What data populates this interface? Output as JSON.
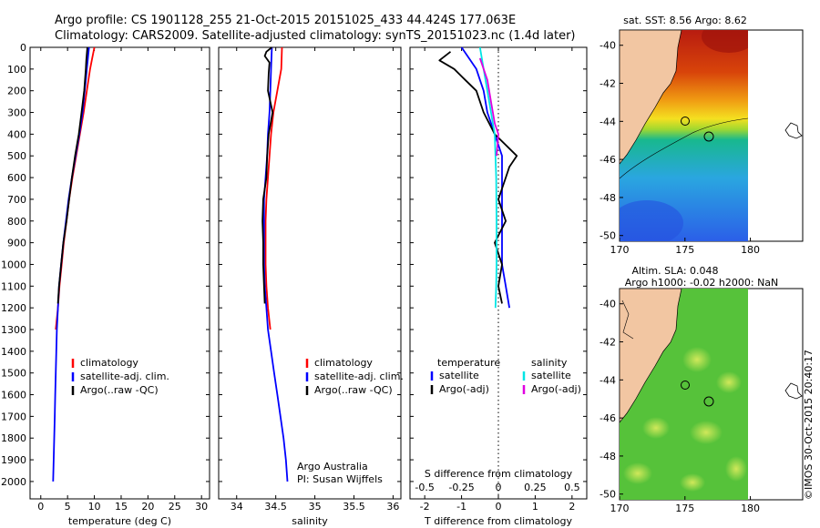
{
  "title_line1": "Argo profile: CS 1901128_255 21-Oct-2015 20151025_433 44.424S 177.063E",
  "title_line2": "Climatology: CARS2009. Satellite-adjusted climatology: synTS_20151023.nc (1.4d later)",
  "watermark": "©IMOS 30-Oct-2015 20:40:17",
  "colors": {
    "clim": "#ff0000",
    "sat": "#0000ff",
    "argo": "#000000",
    "sat_s": "#00e5e5",
    "argo_s": "#e000e0"
  },
  "chart_data": [
    {
      "type": "line",
      "name": "temperature profile",
      "xlabel": "temperature (deg C)",
      "xlim": [
        -2,
        31.5
      ],
      "xticks": [
        0,
        5,
        10,
        15,
        20,
        25,
        30
      ],
      "xtick_labels": [
        "0",
        "5",
        "10",
        "15",
        "20",
        "25",
        "30"
      ],
      "ylim": [
        0,
        2080
      ],
      "yticks": [
        0,
        100,
        200,
        300,
        400,
        500,
        600,
        700,
        800,
        900,
        1000,
        1100,
        1200,
        1300,
        1400,
        1500,
        1600,
        1700,
        1800,
        1900,
        2000
      ],
      "ytick_labels": [
        "0",
        "100",
        "200",
        "300",
        "400",
        "500",
        "600",
        "700",
        "800",
        "900",
        "1000",
        "1100",
        "1200",
        "1300",
        "1400",
        "1500",
        "1600",
        "1700",
        "1800",
        "1900",
        "2000"
      ],
      "legend": [
        "climatology",
        "satellite-adj. clim.",
        "Argo(..raw -QC)"
      ],
      "series": [
        {
          "name": "climatology",
          "color_key": "clim",
          "points": [
            [
              10.0,
              0
            ],
            [
              9.6,
              50
            ],
            [
              9.2,
              100
            ],
            [
              8.9,
              150
            ],
            [
              8.6,
              200
            ],
            [
              8.0,
              300
            ],
            [
              7.3,
              400
            ],
            [
              6.6,
              500
            ],
            [
              5.9,
              600
            ],
            [
              5.3,
              700
            ],
            [
              4.8,
              800
            ],
            [
              4.3,
              900
            ],
            [
              3.9,
              1000
            ],
            [
              3.5,
              1100
            ],
            [
              3.2,
              1200
            ],
            [
              2.8,
              1300
            ]
          ]
        },
        {
          "name": "satellite-adj. clim.",
          "color_key": "sat",
          "points": [
            [
              9.0,
              0
            ],
            [
              8.8,
              50
            ],
            [
              8.6,
              100
            ],
            [
              8.4,
              150
            ],
            [
              8.2,
              200
            ],
            [
              7.8,
              300
            ],
            [
              7.2,
              400
            ],
            [
              6.5,
              500
            ],
            [
              5.8,
              600
            ],
            [
              5.2,
              700
            ],
            [
              4.7,
              800
            ],
            [
              4.2,
              900
            ],
            [
              3.8,
              1000
            ],
            [
              3.4,
              1100
            ],
            [
              3.2,
              1200
            ],
            [
              3.0,
              1300
            ],
            [
              2.9,
              1400
            ],
            [
              2.8,
              1500
            ],
            [
              2.7,
              1600
            ],
            [
              2.6,
              1700
            ],
            [
              2.5,
              1800
            ],
            [
              2.4,
              1900
            ],
            [
              2.3,
              2000
            ]
          ]
        },
        {
          "name": "Argo(..raw -QC)",
          "color_key": "argo",
          "points": [
            [
              8.7,
              0
            ],
            [
              8.6,
              30
            ],
            [
              8.5,
              60
            ],
            [
              8.4,
              100
            ],
            [
              8.1,
              200
            ],
            [
              7.6,
              300
            ],
            [
              7.1,
              400
            ],
            [
              6.4,
              500
            ],
            [
              5.8,
              600
            ],
            [
              5.3,
              700
            ],
            [
              4.8,
              800
            ],
            [
              4.2,
              900
            ],
            [
              3.8,
              1000
            ],
            [
              3.4,
              1100
            ],
            [
              3.2,
              1180
            ]
          ]
        }
      ]
    },
    {
      "type": "line",
      "name": "salinity profile",
      "xlabel": "salinity",
      "xlim": [
        33.77,
        36.1
      ],
      "xticks": [
        34,
        34.5,
        35,
        35.5,
        36
      ],
      "xtick_labels": [
        "34",
        "34.5",
        "35",
        "35.5",
        "36"
      ],
      "ylim": [
        0,
        2080
      ],
      "legend": [
        "climatology",
        "satellite-adj. clim.",
        "Argo(..raw -QC)"
      ],
      "annotation": [
        "Argo Australia",
        "PI: Susan Wijffels"
      ],
      "series": [
        {
          "name": "climatology",
          "color_key": "clim",
          "points": [
            [
              34.58,
              0
            ],
            [
              34.57,
              100
            ],
            [
              34.52,
              200
            ],
            [
              34.47,
              300
            ],
            [
              34.44,
              400
            ],
            [
              34.42,
              500
            ],
            [
              34.4,
              600
            ],
            [
              34.38,
              700
            ],
            [
              34.37,
              800
            ],
            [
              34.37,
              900
            ],
            [
              34.37,
              1000
            ],
            [
              34.38,
              1100
            ],
            [
              34.4,
              1200
            ],
            [
              34.43,
              1300
            ]
          ]
        },
        {
          "name": "satellite-adj. clim.",
          "color_key": "sat",
          "points": [
            [
              34.45,
              0
            ],
            [
              34.44,
              100
            ],
            [
              34.43,
              200
            ],
            [
              34.42,
              300
            ],
            [
              34.4,
              400
            ],
            [
              34.39,
              500
            ],
            [
              34.37,
              600
            ],
            [
              34.35,
              700
            ],
            [
              34.35,
              800
            ],
            [
              34.35,
              900
            ],
            [
              34.35,
              1000
            ],
            [
              34.36,
              1100
            ],
            [
              34.38,
              1200
            ],
            [
              34.4,
              1300
            ],
            [
              34.44,
              1400
            ],
            [
              34.48,
              1500
            ],
            [
              34.52,
              1600
            ],
            [
              34.56,
              1700
            ],
            [
              34.6,
              1800
            ],
            [
              34.63,
              1900
            ],
            [
              34.65,
              2000
            ]
          ]
        },
        {
          "name": "Argo(..raw -QC)",
          "color_key": "argo",
          "points": [
            [
              34.45,
              0
            ],
            [
              34.38,
              20
            ],
            [
              34.36,
              40
            ],
            [
              34.42,
              70
            ],
            [
              34.41,
              120
            ],
            [
              34.4,
              200
            ],
            [
              34.46,
              300
            ],
            [
              34.41,
              400
            ],
            [
              34.39,
              500
            ],
            [
              34.38,
              600
            ],
            [
              34.34,
              700
            ],
            [
              34.33,
              800
            ],
            [
              34.34,
              900
            ],
            [
              34.34,
              1000
            ],
            [
              34.35,
              1100
            ],
            [
              34.36,
              1180
            ]
          ]
        }
      ]
    },
    {
      "type": "line",
      "name": "difference from climatology",
      "xlabel": "T difference from climatology",
      "xlim": [
        -2.4,
        2.4
      ],
      "xticks": [
        -2,
        -1,
        0,
        1,
        2
      ],
      "xtick_labels": [
        "-2",
        "-1",
        "0",
        "1",
        "2"
      ],
      "top_label": "S difference from climatology",
      "sticks": [
        -0.5,
        -0.25,
        0,
        0.25,
        0.5
      ],
      "stick_labels": [
        "-0.5",
        "-0.25",
        "0",
        "0.25",
        "0.5"
      ],
      "ylim": [
        0,
        2080
      ],
      "legend_titles": [
        "temperature",
        "salinity"
      ],
      "legend_temperature": [
        "satellite",
        "Argo(-adj)"
      ],
      "legend_salinity": [
        "satellite",
        "Argo(-adj)"
      ],
      "series": [
        {
          "name": "temperature satellite",
          "color_key": "sat",
          "points": [
            [
              -1.0,
              0
            ],
            [
              -0.8,
              50
            ],
            [
              -0.6,
              100
            ],
            [
              -0.5,
              150
            ],
            [
              -0.4,
              200
            ],
            [
              -0.3,
              300
            ],
            [
              -0.1,
              400
            ],
            [
              0.1,
              500
            ],
            [
              0.1,
              600
            ],
            [
              0.1,
              700
            ],
            [
              0.1,
              800
            ],
            [
              0.1,
              900
            ],
            [
              0.1,
              1000
            ],
            [
              0.2,
              1100
            ],
            [
              0.3,
              1200
            ]
          ]
        },
        {
          "name": "temperature Argo(-adj)",
          "color_key": "argo",
          "points": [
            [
              -1.3,
              20
            ],
            [
              -1.6,
              60
            ],
            [
              -1.2,
              100
            ],
            [
              -0.9,
              150
            ],
            [
              -0.6,
              200
            ],
            [
              -0.4,
              300
            ],
            [
              -0.1,
              400
            ],
            [
              0.5,
              500
            ],
            [
              0.3,
              550
            ],
            [
              0.2,
              600
            ],
            [
              0.0,
              700
            ],
            [
              0.2,
              800
            ],
            [
              -0.1,
              900
            ],
            [
              0.1,
              1000
            ],
            [
              0.0,
              1100
            ],
            [
              0.1,
              1180
            ]
          ]
        },
        {
          "name": "salinity satellite",
          "color_key": "sat_s",
          "points": [
            [
              -0.5,
              0
            ],
            [
              -0.4,
              100
            ],
            [
              -0.3,
              200
            ],
            [
              -0.2,
              300
            ],
            [
              -0.1,
              400
            ],
            [
              -0.08,
              500
            ],
            [
              -0.06,
              600
            ],
            [
              -0.05,
              800
            ],
            [
              -0.05,
              1000
            ],
            [
              -0.06,
              1100
            ],
            [
              -0.08,
              1200
            ]
          ]
        },
        {
          "name": "salinity Argo(-adj)",
          "color_key": "argo_s",
          "points": [
            [
              -0.5,
              50
            ],
            [
              -0.3,
              150
            ],
            [
              -0.2,
              250
            ],
            [
              -0.1,
              350
            ],
            [
              0.0,
              400
            ],
            [
              -0.05,
              500
            ]
          ]
        }
      ]
    }
  ],
  "maps": [
    {
      "name": "SST map",
      "title": [
        "sat. SST: 8.56 Argo: 8.62"
      ],
      "xticks": [
        170,
        175,
        180
      ],
      "xtick_labels": [
        "170",
        "175",
        "180"
      ],
      "yticks": [
        -40,
        -42,
        -44,
        -46,
        -48,
        -50
      ],
      "ytick_labels": [
        "-40",
        "-42",
        "-44",
        "-46",
        "-48",
        "-50"
      ]
    },
    {
      "name": "SLA map",
      "title": [
        "Altim. SLA: 0.048",
        "Argo h1000: -0.02 h2000: NaN"
      ],
      "xticks": [
        170,
        175,
        180
      ],
      "xtick_labels": [
        "170",
        "175",
        "180"
      ],
      "yticks": [
        -40,
        -42,
        -44,
        -46,
        -48,
        -50
      ],
      "ytick_labels": [
        "-40",
        "-42",
        "-44",
        "-46",
        "-48",
        "-50"
      ]
    }
  ]
}
